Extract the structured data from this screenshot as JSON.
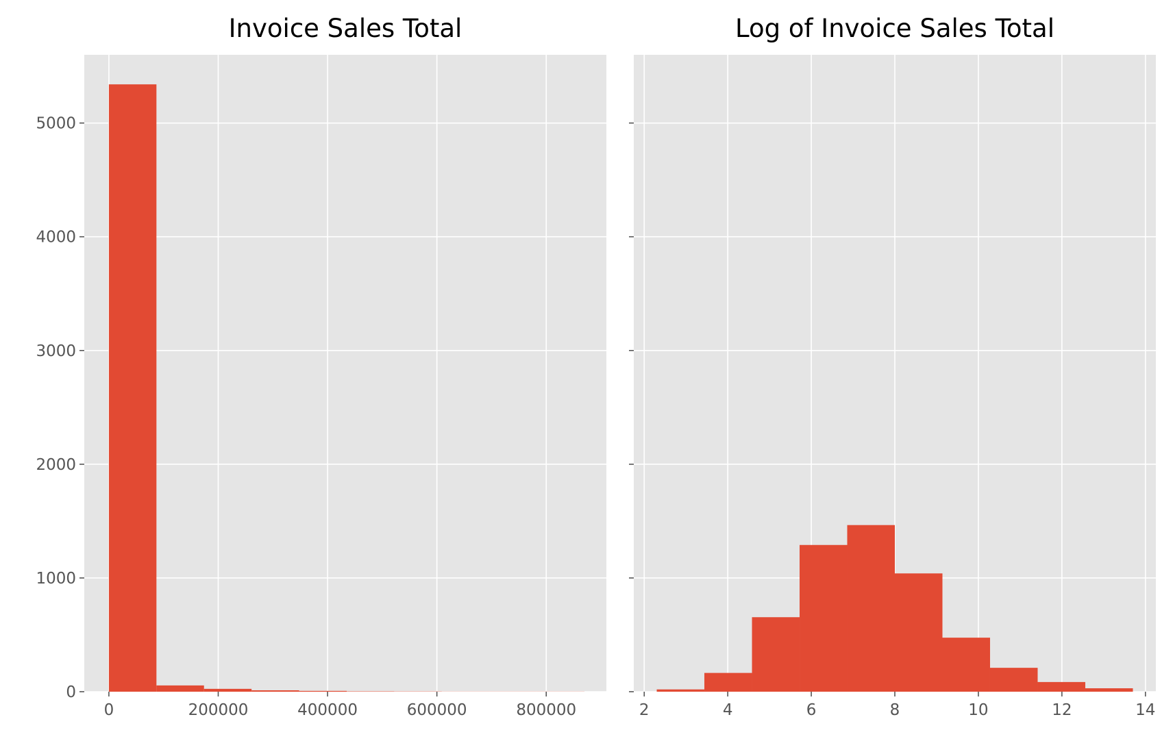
{
  "chart_data": [
    {
      "type": "bar",
      "title": "Invoice Sales Total",
      "xlabel": "",
      "ylabel": "",
      "xlim": [
        -45000,
        910000
      ],
      "ylim": [
        0,
        5600
      ],
      "x_ticks": [
        0,
        200000,
        400000,
        600000,
        800000
      ],
      "x_tick_labels": [
        "0",
        "200000",
        "400000",
        "600000",
        "800000"
      ],
      "y_ticks": [
        0,
        1000,
        2000,
        3000,
        4000,
        5000
      ],
      "y_tick_labels": [
        "0",
        "1000",
        "2000",
        "3000",
        "4000",
        "5000"
      ],
      "bin_edges": [
        0,
        87000,
        174000,
        261000,
        348000,
        435000,
        522000,
        609000,
        696000,
        783000,
        870000
      ],
      "values": [
        5340,
        55,
        25,
        12,
        7,
        3,
        2,
        1,
        1,
        1
      ],
      "grid": true,
      "color": "#e24a33"
    },
    {
      "type": "bar",
      "title": "Log of Invoice Sales Total",
      "xlabel": "",
      "ylabel": "",
      "xlim": [
        1.75,
        14.25
      ],
      "ylim": [
        0,
        5600
      ],
      "x_ticks": [
        2,
        4,
        6,
        8,
        10,
        12,
        14
      ],
      "x_tick_labels": [
        "2",
        "4",
        "6",
        "8",
        "10",
        "12",
        "14"
      ],
      "y_ticks": [
        0,
        1000,
        2000,
        3000,
        4000,
        5000
      ],
      "y_tick_labels": [
        "",
        "",
        "",
        "",
        "",
        ""
      ],
      "bin_edges": [
        2.3,
        3.44,
        4.58,
        5.72,
        6.86,
        8.0,
        9.14,
        10.28,
        11.42,
        12.56,
        13.7
      ],
      "values": [
        20,
        165,
        655,
        1290,
        1465,
        1040,
        475,
        210,
        85,
        30
      ],
      "grid": true,
      "color": "#e24a33"
    }
  ]
}
